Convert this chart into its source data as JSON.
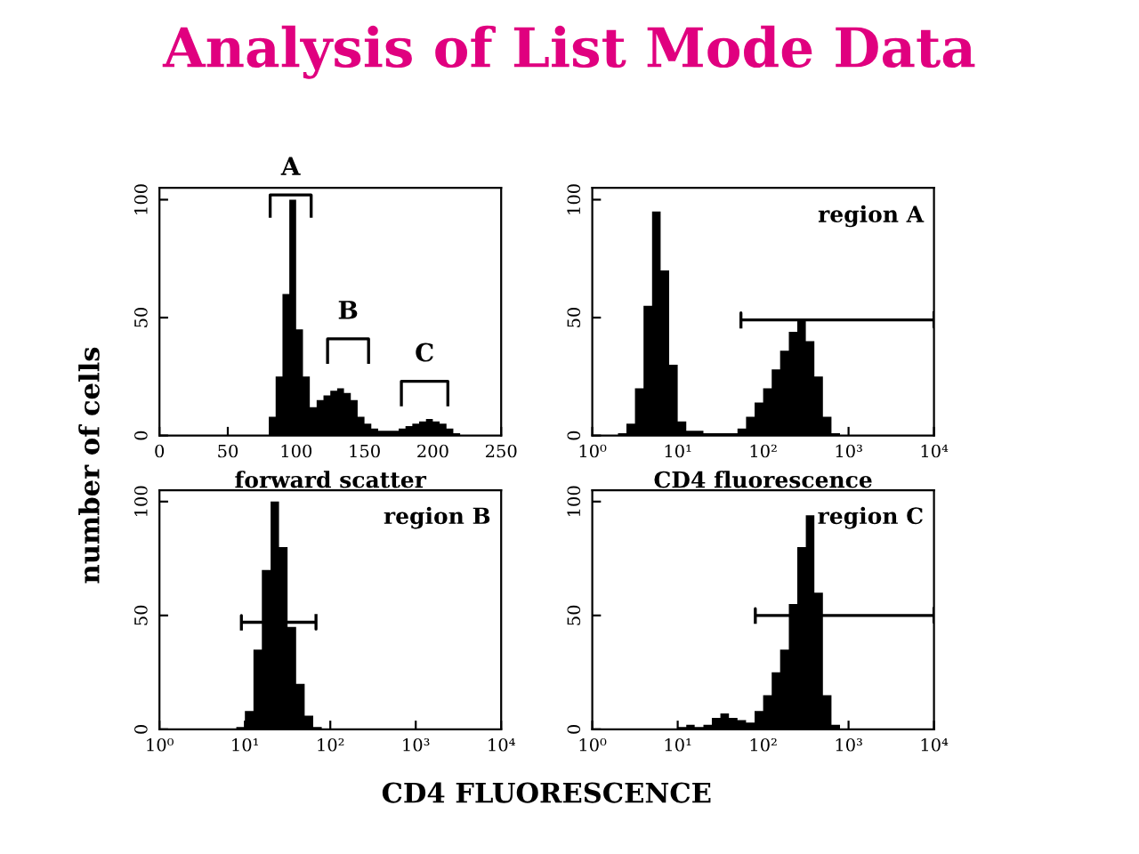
{
  "chart_data": [
    {
      "type": "histogram",
      "title": "Analysis of List Mode Data",
      "ylabel": "number of cells",
      "xlabel": "forward scatter",
      "color": "#000000",
      "bins": [
        80,
        85,
        90,
        95,
        100,
        105,
        110,
        115,
        120,
        125,
        130,
        135,
        140,
        145,
        150,
        155,
        160,
        165,
        170,
        175,
        180,
        185,
        190,
        195,
        200,
        205,
        210,
        215,
        220
      ],
      "values": [
        8,
        25,
        60,
        100,
        45,
        25,
        12,
        15,
        17,
        19,
        20,
        18,
        15,
        8,
        5,
        3,
        2,
        2,
        2,
        3,
        4,
        5,
        6,
        7,
        6,
        5,
        3,
        1
      ],
      "xlim": [
        0,
        250
      ],
      "xticks": [
        0,
        50,
        100,
        150,
        200,
        250
      ],
      "ylim": [
        0,
        105
      ],
      "yticks": [
        0,
        50,
        100
      ],
      "grid": false,
      "series": [
        {
          "type": "line",
          "name": "A",
          "color": "#000000",
          "x": [
            81,
            81,
            111,
            111
          ],
          "values": [
            93,
            102,
            102,
            93
          ]
        },
        {
          "type": "line",
          "name": "B",
          "color": "#000000",
          "x": [
            123,
            123,
            153,
            153
          ],
          "values": [
            31,
            41,
            41,
            31
          ]
        },
        {
          "type": "line",
          "name": "C",
          "color": "#000000",
          "x": [
            177,
            177,
            211,
            211
          ],
          "values": [
            13,
            23,
            23,
            13
          ]
        }
      ]
    },
    {
      "type": "histogram",
      "xlabel": "CD4 fluorescence",
      "color": "#000000",
      "log": "x",
      "bins": [
        1,
        1.26,
        1.58,
        2,
        2.51,
        3.16,
        3.98,
        5.01,
        6.31,
        7.94,
        10,
        12.6,
        15.8,
        20,
        25.1,
        31.6,
        39.8,
        50.1,
        63.1,
        79.4,
        100,
        126,
        158,
        200,
        251,
        316,
        398,
        501,
        631,
        794,
        1000,
        1260,
        1580,
        2000,
        2510,
        3160,
        3980,
        5010,
        6310,
        7940,
        10000
      ],
      "values": [
        0,
        0,
        0,
        1,
        5,
        20,
        55,
        95,
        70,
        30,
        6,
        2,
        2,
        1,
        1,
        1,
        1,
        3,
        8,
        14,
        20,
        28,
        36,
        44,
        49,
        40,
        25,
        8,
        1,
        0,
        0,
        0,
        0,
        0,
        0,
        0,
        0,
        0,
        0,
        0
      ],
      "xlim": [
        1,
        10000
      ],
      "xticks": [
        {
          "value": 1,
          "label": "10⁰"
        },
        {
          "value": 10,
          "label": "10¹"
        },
        {
          "value": 100,
          "label": "10²"
        },
        {
          "value": 1000,
          "label": "10³"
        },
        {
          "value": 10000,
          "label": "10⁴"
        }
      ],
      "ylim": [
        0,
        105
      ],
      "yticks": [
        0,
        50,
        100
      ],
      "grid": false,
      "series": [
        {
          "type": "line",
          "color": "#000000",
          "x": [
            55,
            55,
            55,
            10000,
            10000,
            10000
          ],
          "values": [
            46,
            52,
            49,
            49,
            46,
            52
          ]
        }
      ],
      "annotations": [
        "region A"
      ]
    },
    {
      "type": "histogram",
      "xlabel": "CD4 FLUORESCENCE",
      "color": "#000000",
      "log": "x",
      "bins": [
        1,
        1.26,
        1.58,
        2,
        2.51,
        3.16,
        3.98,
        5.01,
        6.31,
        7.94,
        10,
        12.6,
        15.8,
        20,
        25.1,
        31.6,
        39.8,
        50.1,
        63.1,
        79.4,
        100,
        126,
        158,
        200,
        251,
        316,
        398,
        501,
        631,
        794,
        1000,
        1260,
        1580,
        2000,
        2510,
        3160,
        3980,
        5010,
        6310,
        7940,
        10000
      ],
      "values": [
        0,
        0,
        0,
        0,
        0,
        0,
        0,
        0,
        0,
        1,
        8,
        35,
        70,
        100,
        80,
        45,
        20,
        6,
        1,
        0,
        0,
        0,
        0,
        0,
        0,
        0,
        0,
        0,
        0,
        0,
        0,
        0,
        0,
        0,
        0,
        0,
        0,
        0,
        0,
        0
      ],
      "xlim": [
        1,
        10000
      ],
      "xticks": [
        {
          "value": 1,
          "label": "10⁰"
        },
        {
          "value": 10,
          "label": "10¹"
        },
        {
          "value": 100,
          "label": "10²"
        },
        {
          "value": 1000,
          "label": "10³"
        },
        {
          "value": 10000,
          "label": "10⁴"
        }
      ],
      "ylim": [
        0,
        105
      ],
      "yticks": [
        0,
        50,
        100
      ],
      "grid": false,
      "series": [
        {
          "type": "line",
          "color": "#000000",
          "x": [
            9.1,
            9.1,
            9.1,
            68,
            68,
            68
          ],
          "values": [
            44,
            50,
            47,
            47,
            44,
            50
          ]
        }
      ],
      "annotations": [
        "region B"
      ]
    },
    {
      "type": "histogram",
      "color": "#000000",
      "log": "x",
      "bins": [
        1,
        1.26,
        1.58,
        2,
        2.51,
        3.16,
        3.98,
        5.01,
        6.31,
        7.94,
        10,
        12.6,
        15.8,
        20,
        25.1,
        31.6,
        39.8,
        50.1,
        63.1,
        79.4,
        100,
        126,
        158,
        200,
        251,
        316,
        398,
        501,
        631,
        794,
        1000,
        1260,
        1580,
        2000,
        2510,
        3160,
        3980,
        5010,
        6310,
        7940,
        10000
      ],
      "values": [
        0,
        0,
        0,
        0,
        0,
        0,
        0,
        0,
        0,
        0,
        1,
        2,
        1,
        2,
        5,
        7,
        5,
        4,
        3,
        8,
        15,
        25,
        35,
        55,
        80,
        94,
        60,
        15,
        2,
        0,
        0,
        0,
        0,
        0,
        0,
        0,
        0,
        0,
        0,
        0
      ],
      "xlim": [
        1,
        10000
      ],
      "xticks": [
        {
          "value": 1,
          "label": "10⁰"
        },
        {
          "value": 10,
          "label": "10¹"
        },
        {
          "value": 100,
          "label": "10²"
        },
        {
          "value": 1000,
          "label": "10³"
        },
        {
          "value": 10000,
          "label": "10⁴"
        }
      ],
      "ylim": [
        0,
        105
      ],
      "yticks": [
        0,
        50,
        100
      ],
      "grid": false,
      "series": [
        {
          "type": "line",
          "color": "#000000",
          "x": [
            81,
            81,
            81,
            10000,
            10000,
            10000
          ],
          "values": [
            47,
            53,
            50,
            50,
            47,
            53
          ]
        }
      ],
      "annotations": [
        "region C"
      ]
    }
  ]
}
